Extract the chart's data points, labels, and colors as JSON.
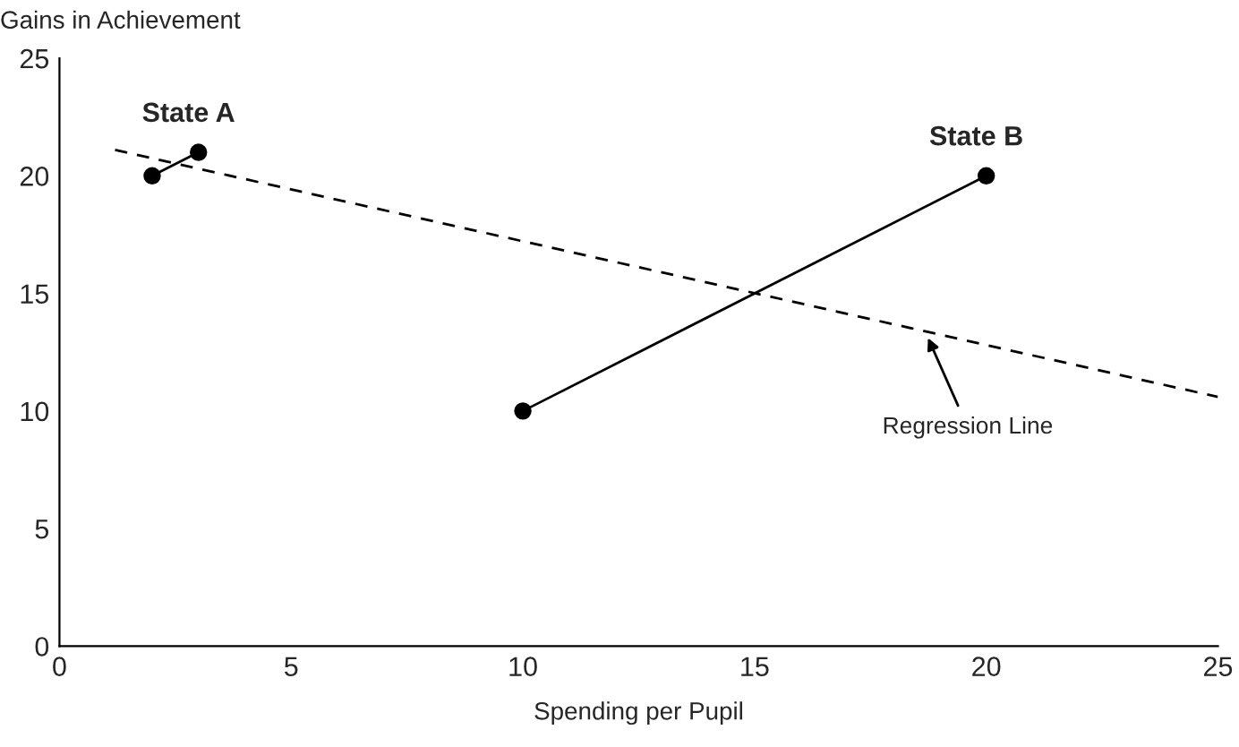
{
  "chart_data": {
    "type": "line",
    "xlabel": "Spending per Pupil",
    "ylabel": "Gains in Achievement",
    "xlim": [
      0,
      25
    ],
    "ylim": [
      0,
      25
    ],
    "xticks": [
      0,
      5,
      10,
      15,
      20,
      25
    ],
    "yticks": [
      0,
      5,
      10,
      15,
      20,
      25
    ],
    "grid": false,
    "legend": false,
    "marker": "circle",
    "series": [
      {
        "name": "State A",
        "color": "#000000",
        "x": [
          2,
          3
        ],
        "values": [
          20,
          21
        ]
      },
      {
        "name": "State B",
        "color": "#000000",
        "x": [
          10,
          20
        ],
        "values": [
          10,
          20
        ]
      },
      {
        "color": "#000000",
        "marker": "none",
        "line_style": "dashed",
        "x": [
          1.2,
          25
        ],
        "values": [
          21.1,
          10.6
        ]
      }
    ],
    "annotations": [
      {
        "text": "Regression Line",
        "x": 18.7,
        "y": 13.3
      }
    ]
  }
}
